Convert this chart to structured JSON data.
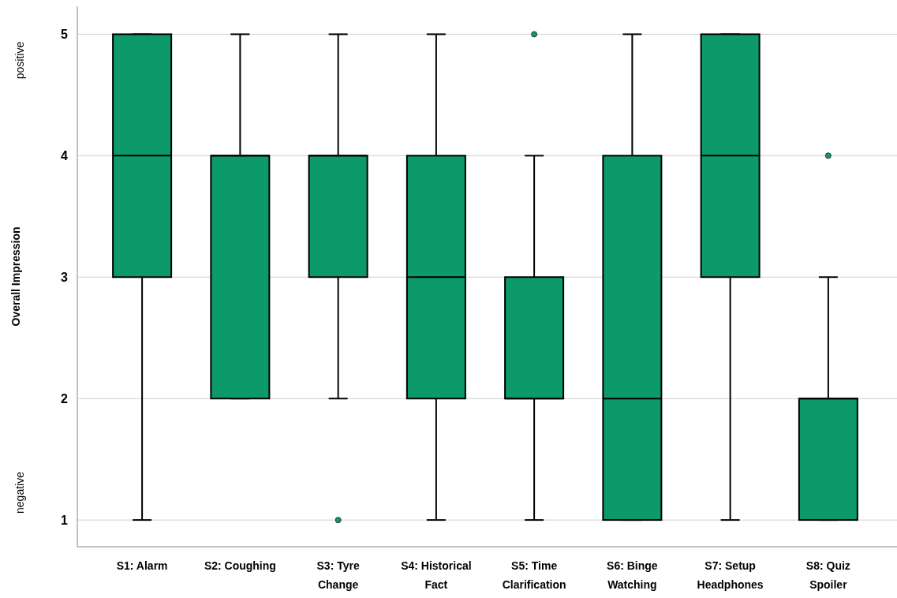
{
  "chart_data": {
    "type": "box",
    "ylabel": "Overall Impression",
    "categories": [
      "S1: Alarm",
      "S2: Coughing",
      "S3: Tyre Change",
      "S4: Historical Fact",
      "S5: Time Clarification",
      "S6: Binge Watching",
      "S7: Setup Headphones",
      "S8: Quiz Spoiler"
    ],
    "color": "#0c9a6a",
    "boxes": [
      {
        "low": 1,
        "q1": 3,
        "median": 4,
        "q3": 5,
        "high": 5
      },
      {
        "low": 2,
        "q1": 2,
        "median": 4,
        "q3": 4,
        "high": 5
      },
      {
        "low": 2,
        "q1": 3,
        "median": 4,
        "q3": 4,
        "high": 5,
        "outliers": [
          1
        ]
      },
      {
        "low": 1,
        "q1": 2,
        "median": 3,
        "q3": 4,
        "high": 5
      },
      {
        "low": 1,
        "q1": 2,
        "median": 2,
        "q3": 3,
        "high": 4,
        "outliers": [
          5
        ]
      },
      {
        "low": 1,
        "q1": 1,
        "median": 2,
        "q3": 4,
        "high": 5
      },
      {
        "low": 1,
        "q1": 3,
        "median": 4,
        "q3": 5,
        "high": 5
      },
      {
        "low": 1,
        "q1": 1,
        "median": 2,
        "q3": 2,
        "high": 3,
        "outliers": [
          4
        ]
      }
    ],
    "ylim": [
      0.78,
      5.23
    ],
    "yticks": [
      1,
      2,
      3,
      4,
      5
    ],
    "grid": "y",
    "annotations": [
      "positive",
      "negative"
    ]
  }
}
